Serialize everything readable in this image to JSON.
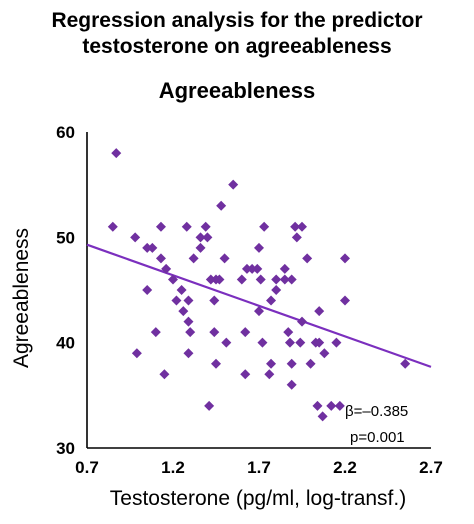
{
  "figure": {
    "title_line1": "Regression analysis for the predictor",
    "title_line2": "testosterone on agreeableness"
  },
  "chart_data": {
    "type": "scatter",
    "title": "Agreeableness",
    "xlabel": "Testosterone (pg/ml, log-transf.)",
    "ylabel": "Agreeableness",
    "xlim": [
      0.7,
      2.7
    ],
    "ylim": [
      30,
      60
    ],
    "xticks": [
      "0.7",
      "1.2",
      "1.7",
      "2.2",
      "2.7"
    ],
    "yticks": [
      "30",
      "40",
      "50",
      "60"
    ],
    "marker_color": "#7030a0",
    "line_color": "#7b2fbe",
    "regression_line": {
      "x": [
        0.7,
        2.7
      ],
      "y": [
        49.3,
        37.7
      ]
    },
    "annotation": {
      "beta": "β=–0.385",
      "p": "p=0.001"
    },
    "points": [
      {
        "x": 0.87,
        "y": 58
      },
      {
        "x": 0.85,
        "y": 51
      },
      {
        "x": 0.98,
        "y": 50
      },
      {
        "x": 1.05,
        "y": 49
      },
      {
        "x": 1.08,
        "y": 49
      },
      {
        "x": 1.05,
        "y": 45
      },
      {
        "x": 1.1,
        "y": 41
      },
      {
        "x": 0.99,
        "y": 39
      },
      {
        "x": 1.15,
        "y": 37
      },
      {
        "x": 1.13,
        "y": 51
      },
      {
        "x": 1.13,
        "y": 48
      },
      {
        "x": 1.16,
        "y": 47
      },
      {
        "x": 1.2,
        "y": 46
      },
      {
        "x": 1.22,
        "y": 44
      },
      {
        "x": 1.25,
        "y": 45
      },
      {
        "x": 1.26,
        "y": 43
      },
      {
        "x": 1.29,
        "y": 42
      },
      {
        "x": 1.29,
        "y": 44
      },
      {
        "x": 1.3,
        "y": 41
      },
      {
        "x": 1.29,
        "y": 39
      },
      {
        "x": 1.28,
        "y": 51
      },
      {
        "x": 1.32,
        "y": 48
      },
      {
        "x": 1.36,
        "y": 49
      },
      {
        "x": 1.36,
        "y": 50
      },
      {
        "x": 1.39,
        "y": 51
      },
      {
        "x": 1.4,
        "y": 50
      },
      {
        "x": 1.42,
        "y": 46
      },
      {
        "x": 1.45,
        "y": 46
      },
      {
        "x": 1.47,
        "y": 46
      },
      {
        "x": 1.44,
        "y": 44
      },
      {
        "x": 1.44,
        "y": 41
      },
      {
        "x": 1.45,
        "y": 38
      },
      {
        "x": 1.48,
        "y": 53
      },
      {
        "x": 1.5,
        "y": 48
      },
      {
        "x": 1.55,
        "y": 55
      },
      {
        "x": 1.41,
        "y": 34
      },
      {
        "x": 1.51,
        "y": 40
      },
      {
        "x": 1.6,
        "y": 46
      },
      {
        "x": 1.63,
        "y": 47
      },
      {
        "x": 1.66,
        "y": 47
      },
      {
        "x": 1.69,
        "y": 47
      },
      {
        "x": 1.71,
        "y": 46
      },
      {
        "x": 1.7,
        "y": 49
      },
      {
        "x": 1.73,
        "y": 51
      },
      {
        "x": 1.62,
        "y": 41
      },
      {
        "x": 1.62,
        "y": 37
      },
      {
        "x": 1.72,
        "y": 40
      },
      {
        "x": 1.7,
        "y": 43
      },
      {
        "x": 1.77,
        "y": 44
      },
      {
        "x": 1.77,
        "y": 38
      },
      {
        "x": 1.76,
        "y": 37
      },
      {
        "x": 1.8,
        "y": 46
      },
      {
        "x": 1.85,
        "y": 46
      },
      {
        "x": 1.85,
        "y": 47
      },
      {
        "x": 1.8,
        "y": 45
      },
      {
        "x": 1.89,
        "y": 46
      },
      {
        "x": 1.91,
        "y": 51
      },
      {
        "x": 1.92,
        "y": 50
      },
      {
        "x": 1.95,
        "y": 51
      },
      {
        "x": 1.98,
        "y": 48
      },
      {
        "x": 1.87,
        "y": 41
      },
      {
        "x": 1.88,
        "y": 40
      },
      {
        "x": 1.89,
        "y": 38
      },
      {
        "x": 1.89,
        "y": 36
      },
      {
        "x": 1.95,
        "y": 42
      },
      {
        "x": 1.94,
        "y": 40
      },
      {
        "x": 2.03,
        "y": 40
      },
      {
        "x": 2.05,
        "y": 40
      },
      {
        "x": 2.0,
        "y": 38
      },
      {
        "x": 2.05,
        "y": 43
      },
      {
        "x": 2.08,
        "y": 39
      },
      {
        "x": 2.15,
        "y": 40
      },
      {
        "x": 2.2,
        "y": 48
      },
      {
        "x": 2.2,
        "y": 44
      },
      {
        "x": 2.12,
        "y": 34
      },
      {
        "x": 2.17,
        "y": 34
      },
      {
        "x": 2.04,
        "y": 34
      },
      {
        "x": 2.07,
        "y": 33
      },
      {
        "x": 2.55,
        "y": 38
      }
    ]
  }
}
